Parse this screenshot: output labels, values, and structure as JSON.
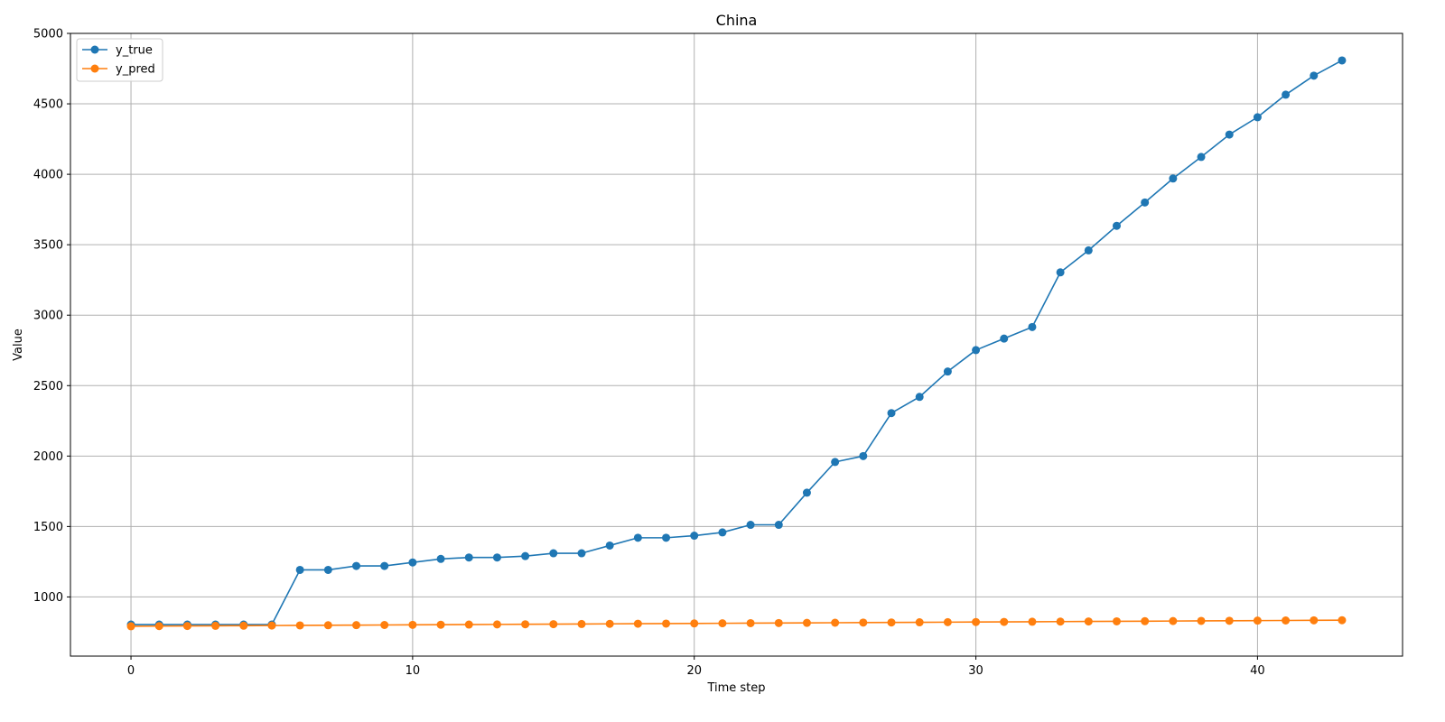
{
  "chart_data": {
    "type": "line",
    "title": "China",
    "xlabel": "Time step",
    "ylabel": "Value",
    "xlim": [
      -2.15,
      45.15
    ],
    "ylim": [
      580,
      5000
    ],
    "xticks": [
      0,
      10,
      20,
      30,
      40
    ],
    "yticks": [
      1000,
      1500,
      2000,
      2500,
      3000,
      3500,
      4000,
      4500,
      5000
    ],
    "grid": true,
    "legend_position": "top-left",
    "x": [
      0,
      1,
      2,
      3,
      4,
      5,
      6,
      7,
      8,
      9,
      10,
      11,
      12,
      13,
      14,
      15,
      16,
      17,
      18,
      19,
      20,
      21,
      22,
      23,
      24,
      25,
      26,
      27,
      28,
      29,
      30,
      31,
      32,
      33,
      34,
      35,
      36,
      37,
      38,
      39,
      40,
      41,
      42,
      43
    ],
    "series": [
      {
        "name": "y_true",
        "color": "#1f77b4",
        "values": [
          804,
          804,
          804,
          804,
          804,
          804,
          1192,
          1192,
          1220,
          1220,
          1245,
          1270,
          1280,
          1280,
          1290,
          1310,
          1310,
          1365,
          1420,
          1420,
          1435,
          1458,
          1512,
          1512,
          1740,
          1958,
          2000,
          2305,
          2420,
          2600,
          2752,
          2834,
          2916,
          3304,
          3460,
          3634,
          3800,
          3970,
          4123,
          4282,
          4405,
          4565,
          4700,
          4808
        ]
      },
      {
        "name": "y_pred",
        "color": "#ff7f0e",
        "values": [
          792,
          793,
          794,
          795,
          796,
          797,
          798,
          799,
          800,
          801,
          802,
          803,
          804,
          805,
          806,
          807,
          808,
          809,
          810,
          811,
          812,
          813,
          814,
          815,
          816,
          817,
          818,
          819,
          820,
          821,
          822,
          823,
          824,
          825,
          826,
          827,
          828,
          829,
          830,
          831,
          832,
          833,
          834,
          835
        ]
      }
    ]
  }
}
